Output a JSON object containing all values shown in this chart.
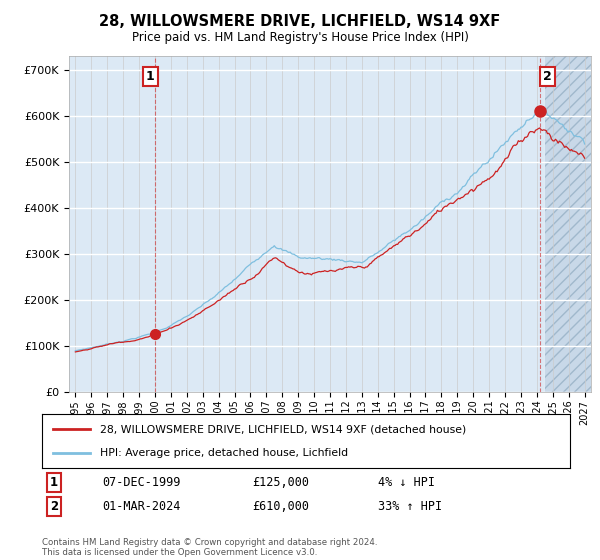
{
  "title": "28, WILLOWSMERE DRIVE, LICHFIELD, WS14 9XF",
  "subtitle": "Price paid vs. HM Land Registry's House Price Index (HPI)",
  "plot_bg_color": "#dce9f5",
  "yticks": [
    0,
    100000,
    200000,
    300000,
    400000,
    500000,
    600000,
    700000
  ],
  "ytick_labels": [
    "£0",
    "£100K",
    "£200K",
    "£300K",
    "£400K",
    "£500K",
    "£600K",
    "£700K"
  ],
  "ylim": [
    0,
    730000
  ],
  "hpi_color": "#7fbfdf",
  "price_color": "#cc2222",
  "sale1_x": 2000.0,
  "sale1_y": 125000,
  "sale2_x": 2024.17,
  "sale2_y": 610000,
  "sale1_date": "07-DEC-1999",
  "sale1_price": "£125,000",
  "sale1_label": "4% ↓ HPI",
  "sale2_date": "01-MAR-2024",
  "sale2_price": "£610,000",
  "sale2_label": "33% ↑ HPI",
  "legend_label1": "28, WILLOWSMERE DRIVE, LICHFIELD, WS14 9XF (detached house)",
  "legend_label2": "HPI: Average price, detached house, Lichfield",
  "footer": "Contains HM Land Registry data © Crown copyright and database right 2024.\nThis data is licensed under the Open Government Licence v3.0.",
  "xlim_left": 1994.6,
  "xlim_right": 2027.4,
  "hatch_start": 2024.5
}
